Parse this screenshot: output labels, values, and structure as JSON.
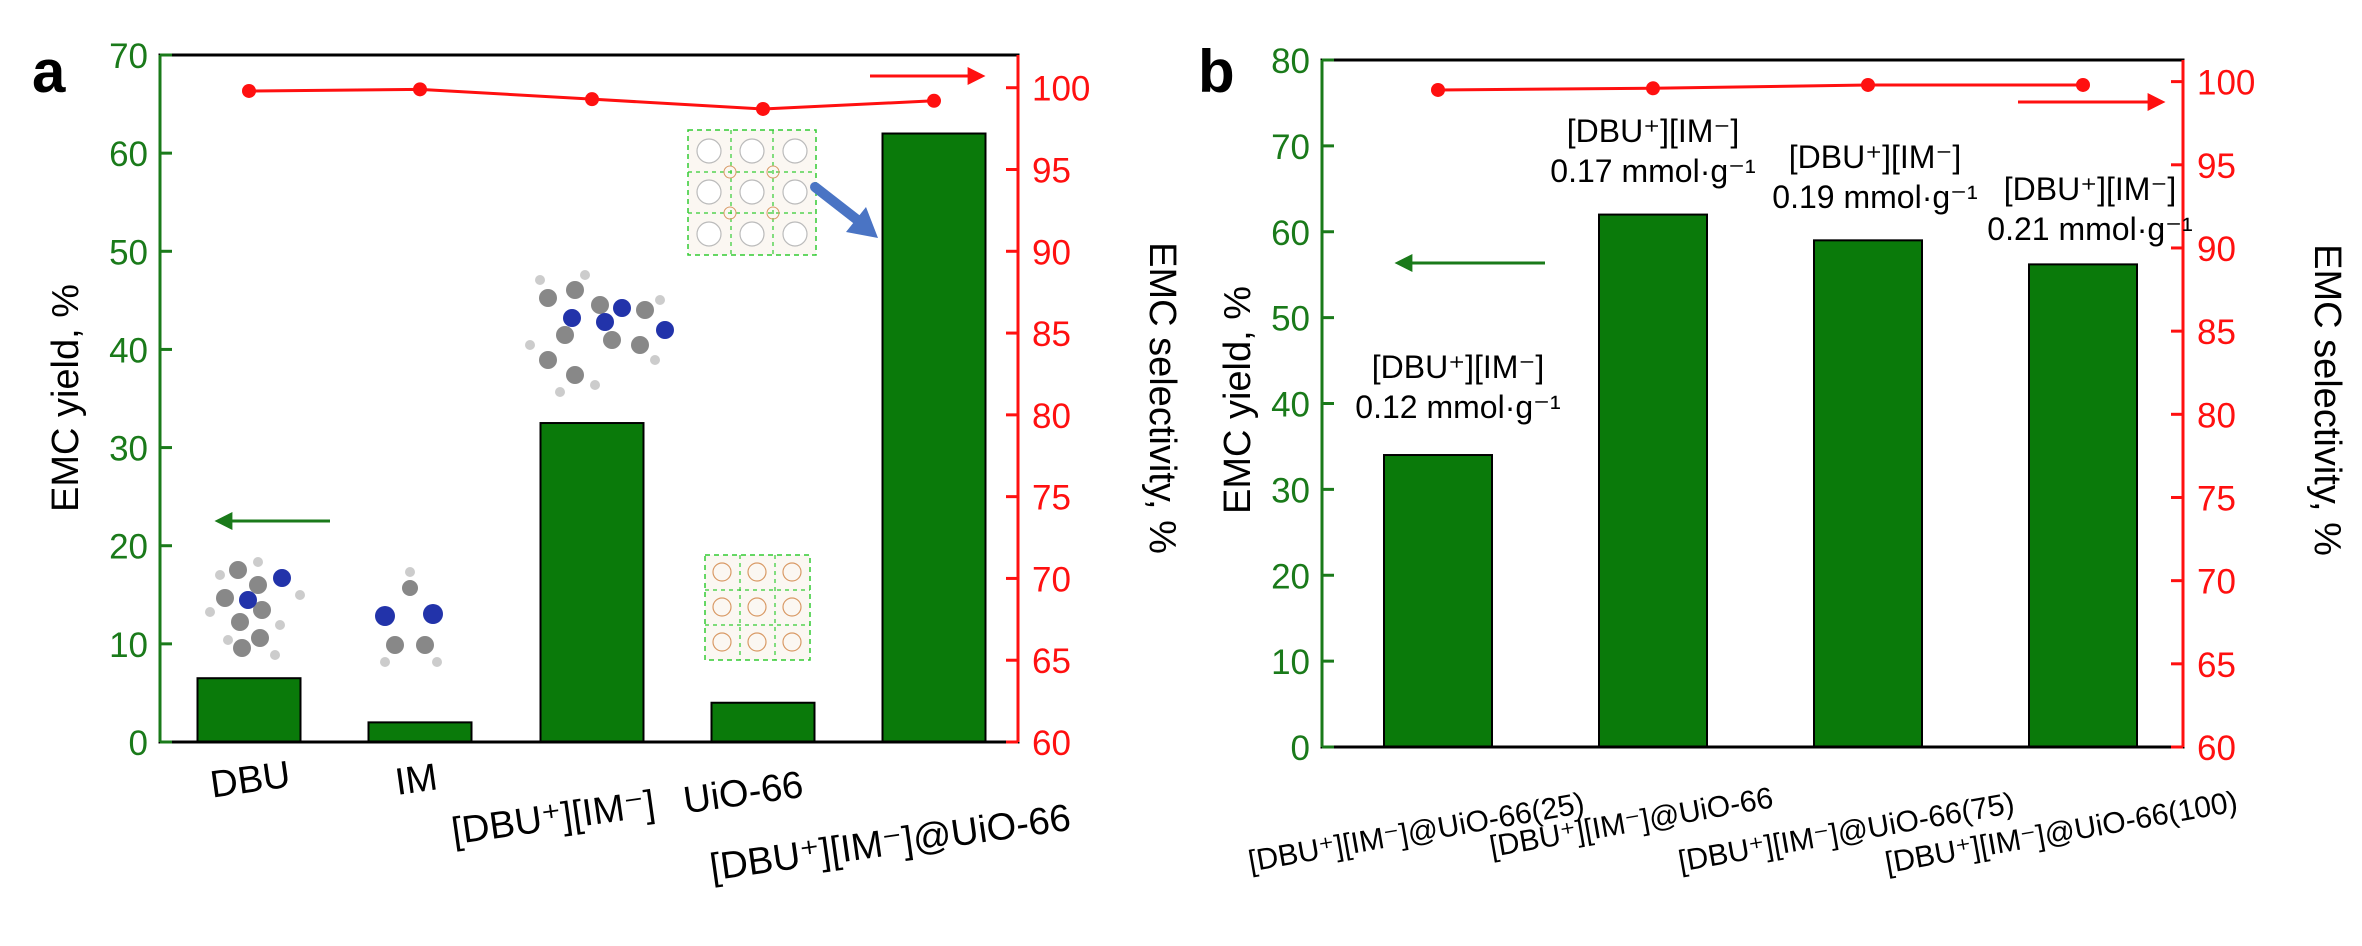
{
  "chart_data": [
    {
      "type": "bar+line",
      "panel_label": "a",
      "categories": [
        "DBU",
        "IM",
        "[DBU⁺][IM⁻]",
        "UiO-66",
        "[DBU⁺][IM⁻]@UiO-66"
      ],
      "series": [
        {
          "name": "EMC yield",
          "axis": "left",
          "type": "bar",
          "values": [
            6.5,
            2.0,
            32.5,
            4.0,
            62.0
          ]
        },
        {
          "name": "EMC selectivity",
          "axis": "right",
          "type": "line",
          "values": [
            99.8,
            99.9,
            99.3,
            98.7,
            99.2
          ]
        }
      ],
      "ylabel": "EMC yield, %",
      "y2label": "EMC selectivity, %",
      "ylim": [
        0,
        70
      ],
      "y2lim": [
        60,
        102
      ],
      "yticks": [
        0,
        10,
        20,
        30,
        40,
        50,
        60,
        70
      ],
      "y2ticks": [
        60,
        65,
        70,
        75,
        80,
        85,
        90,
        95,
        100
      ],
      "annotations": [
        "arrow to left axis for bars",
        "arrow to right axis for selectivity",
        "molecular structure insets"
      ]
    },
    {
      "type": "bar+line",
      "panel_label": "b",
      "categories": [
        "[DBU⁺][IM⁻]@UiO-66(25)",
        "[DBU⁺][IM⁻]@UiO-66",
        "[DBU⁺][IM⁻]@UiO-66(75)",
        "[DBU⁺][IM⁻]@UiO-66(100)"
      ],
      "series": [
        {
          "name": "EMC yield",
          "axis": "left",
          "type": "bar",
          "values": [
            34.0,
            62.0,
            59.0,
            56.2
          ]
        },
        {
          "name": "EMC selectivity",
          "axis": "right",
          "type": "line",
          "values": [
            99.5,
            99.6,
            99.8,
            99.8
          ]
        }
      ],
      "bar_labels": [
        {
          "line1": "[DBU⁺][IM⁻]",
          "line2": "0.12 mmol·g⁻¹"
        },
        {
          "line1": "[DBU⁺][IM⁻]",
          "line2": "0.17 mmol·g⁻¹"
        },
        {
          "line1": "[DBU⁺][IM⁻]",
          "line2": "0.19 mmol·g⁻¹"
        },
        {
          "line1": "[DBU⁺][IM⁻]",
          "line2": "0.21 mmol·g⁻¹"
        }
      ],
      "ylabel": "EMC yield, %",
      "y2label": "EMC selectivity, %",
      "ylim": [
        0,
        80
      ],
      "y2lim": [
        60,
        101.3
      ],
      "yticks": [
        0,
        10,
        20,
        30,
        40,
        50,
        60,
        70,
        80
      ],
      "y2ticks": [
        60,
        65,
        70,
        75,
        80,
        85,
        90,
        95,
        100
      ]
    }
  ],
  "colors": {
    "bar": "#0a7a0a",
    "left_axis": "#1a7a1a",
    "right_axis": "#ff1010",
    "line": "#ff1010",
    "frame": "#000000",
    "framework_arrow": "#4a74c4"
  }
}
